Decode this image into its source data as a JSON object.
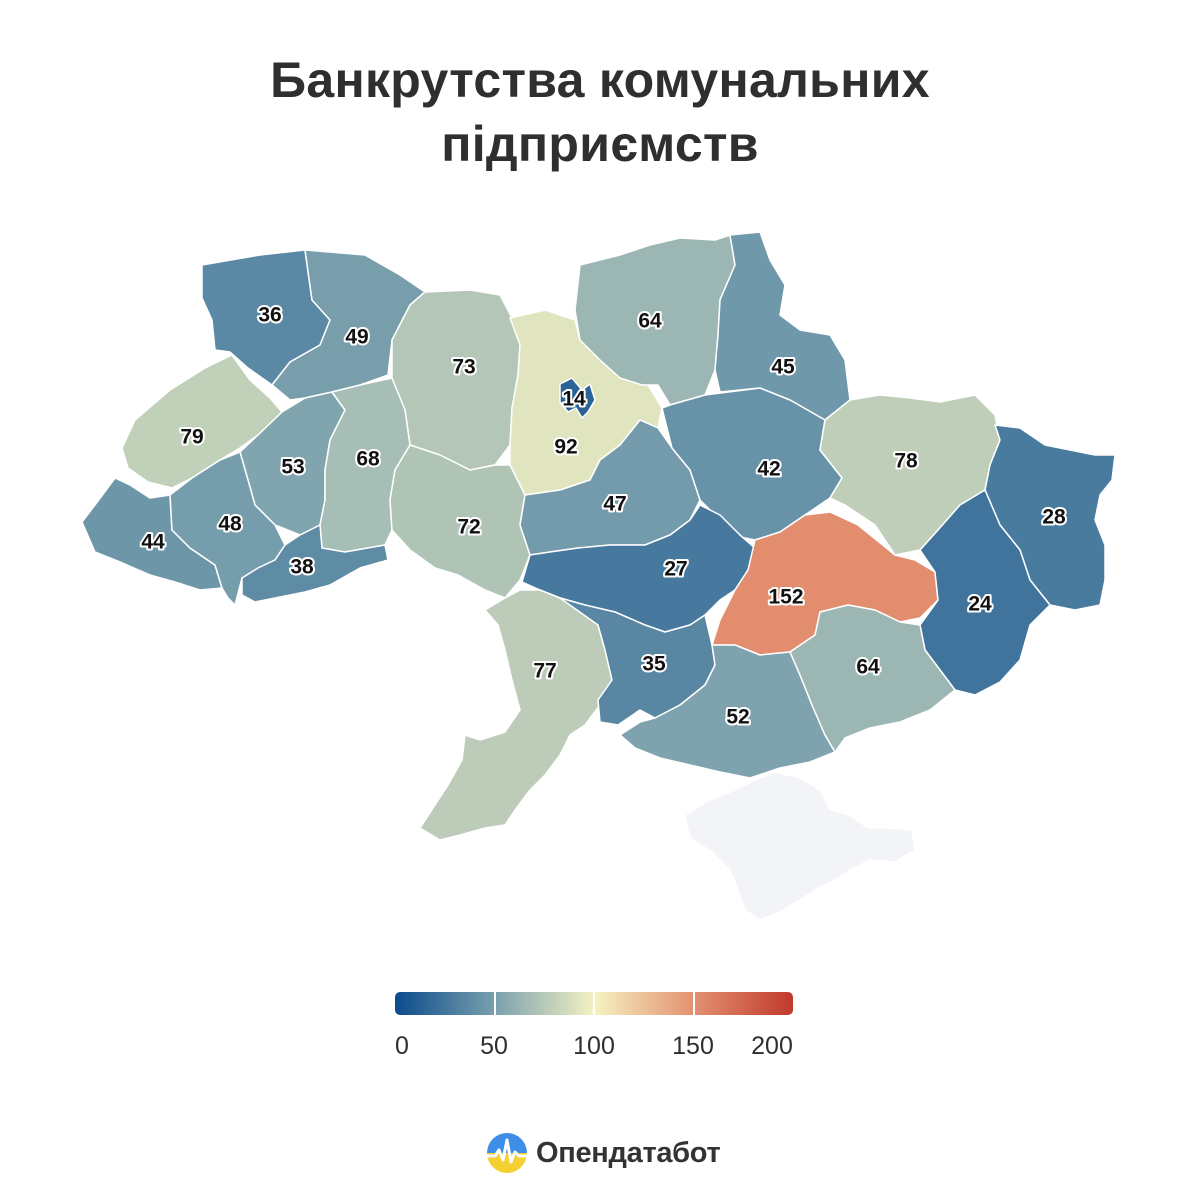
{
  "title_line1": "Банкрутства комунальних",
  "title_line2": "підприємств",
  "regions": [
    {
      "id": "volyn",
      "value": 36
    },
    {
      "id": "rivne",
      "value": 49
    },
    {
      "id": "zhytomyr",
      "value": 73
    },
    {
      "id": "kyiv-oblast",
      "value": 92
    },
    {
      "id": "kyiv-city",
      "value": 14
    },
    {
      "id": "chernihiv",
      "value": 64
    },
    {
      "id": "sumy",
      "value": 45
    },
    {
      "id": "lviv",
      "value": 79
    },
    {
      "id": "ternopil",
      "value": 53
    },
    {
      "id": "khmelnytskyi",
      "value": 68
    },
    {
      "id": "vinnytsia",
      "value": 72
    },
    {
      "id": "cherkasy",
      "value": 47
    },
    {
      "id": "poltava",
      "value": 42
    },
    {
      "id": "kharkiv",
      "value": 78
    },
    {
      "id": "luhansk",
      "value": 28
    },
    {
      "id": "zakarpattia",
      "value": 44
    },
    {
      "id": "ivano-frankivsk",
      "value": 48
    },
    {
      "id": "chernivtsi",
      "value": 38
    },
    {
      "id": "kirovohrad",
      "value": 27
    },
    {
      "id": "dnipropetrovsk",
      "value": 152
    },
    {
      "id": "donetsk",
      "value": 24
    },
    {
      "id": "odesa",
      "value": 77
    },
    {
      "id": "mykolaiv",
      "value": 35
    },
    {
      "id": "kherson",
      "value": 52
    },
    {
      "id": "zaporizhzhia",
      "value": 64
    },
    {
      "id": "crimea",
      "value": null
    }
  ],
  "legend": {
    "ticks": [
      "0",
      "50",
      "100",
      "150",
      "200"
    ],
    "min": 0,
    "max": 200,
    "stops": [
      {
        "value": 0,
        "color": "#0b4b8c"
      },
      {
        "value": 50,
        "color": "#7aa0ad"
      },
      {
        "value": 100,
        "color": "#f5f2c2"
      },
      {
        "value": 150,
        "color": "#e39070"
      },
      {
        "value": 200,
        "color": "#c0392b"
      }
    ],
    "nodata_color": "#f3f4f7"
  },
  "brand": {
    "name": "Опендатабот"
  }
}
